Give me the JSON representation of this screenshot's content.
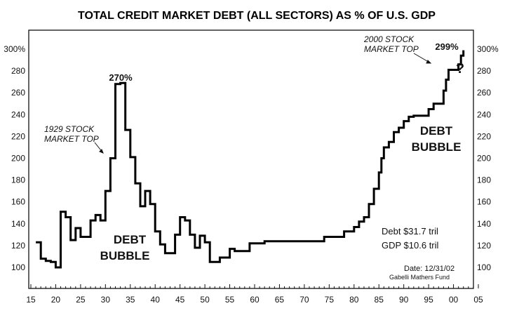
{
  "chart_data": {
    "type": "line",
    "title": "TOTAL CREDIT MARKET DEBT (ALL SECTORS) AS % OF U.S. GDP",
    "xlabel": "",
    "ylabel": "",
    "xlim": [
      1915,
      2005
    ],
    "ylim": [
      90,
      305
    ],
    "x_ticks": [
      "15",
      "20",
      "25",
      "30",
      "35",
      "40",
      "45",
      "50",
      "55",
      "60",
      "65",
      "70",
      "75",
      "80",
      "85",
      "90",
      "95",
      "00",
      "05"
    ],
    "y_ticks_left": [
      "100",
      "120",
      "140",
      "160",
      "180",
      "200",
      "220",
      "240",
      "260",
      "280",
      "300%"
    ],
    "y_ticks_right": [
      "100",
      "120",
      "140",
      "160",
      "180",
      "200",
      "220",
      "240",
      "260",
      "280",
      "300%"
    ],
    "grid": false,
    "series": [
      {
        "points": [
          [
            1916,
            123
          ],
          [
            1917,
            123
          ],
          [
            1917,
            108
          ],
          [
            1918,
            108
          ],
          [
            1918,
            106
          ],
          [
            1919,
            106
          ],
          [
            1919,
            105
          ],
          [
            1920,
            105
          ],
          [
            1920,
            100
          ],
          [
            1921,
            100
          ],
          [
            1921,
            151
          ],
          [
            1922,
            151
          ],
          [
            1922,
            146
          ],
          [
            1923,
            146
          ],
          [
            1923,
            125
          ],
          [
            1924,
            125
          ],
          [
            1924,
            136
          ],
          [
            1925,
            136
          ],
          [
            1925,
            128
          ],
          [
            1926,
            128
          ],
          [
            1926,
            128
          ],
          [
            1927,
            128
          ],
          [
            1927,
            143
          ],
          [
            1928,
            143
          ],
          [
            1928,
            148
          ],
          [
            1929,
            148
          ],
          [
            1929,
            143
          ],
          [
            1930,
            143
          ],
          [
            1930,
            170
          ],
          [
            1931,
            170
          ],
          [
            1931,
            200
          ],
          [
            1932,
            200
          ],
          [
            1932,
            268
          ],
          [
            1933,
            268
          ],
          [
            1933,
            269
          ],
          [
            1934,
            269
          ],
          [
            1934,
            226
          ],
          [
            1935,
            226
          ],
          [
            1935,
            201
          ],
          [
            1936,
            201
          ],
          [
            1936,
            177
          ],
          [
            1937,
            177
          ],
          [
            1937,
            156
          ],
          [
            1938,
            156
          ],
          [
            1938,
            170
          ],
          [
            1939,
            170
          ],
          [
            1939,
            158
          ],
          [
            1940,
            158
          ],
          [
            1940,
            133
          ],
          [
            1941,
            133
          ],
          [
            1941,
            121
          ],
          [
            1942,
            121
          ],
          [
            1942,
            113
          ],
          [
            1944,
            113
          ],
          [
            1944,
            130
          ],
          [
            1945,
            130
          ],
          [
            1945,
            146
          ],
          [
            1946,
            146
          ],
          [
            1946,
            143
          ],
          [
            1947,
            143
          ],
          [
            1947,
            130
          ],
          [
            1948,
            130
          ],
          [
            1948,
            118
          ],
          [
            1949,
            118
          ],
          [
            1949,
            129
          ],
          [
            1950,
            129
          ],
          [
            1950,
            123
          ],
          [
            1951,
            123
          ],
          [
            1951,
            105
          ],
          [
            1953,
            105
          ],
          [
            1953,
            109
          ],
          [
            1955,
            109
          ],
          [
            1955,
            117
          ],
          [
            1956,
            117
          ],
          [
            1956,
            115
          ],
          [
            1959,
            115
          ],
          [
            1959,
            122
          ],
          [
            1962,
            122
          ],
          [
            1962,
            124
          ],
          [
            1974,
            124
          ],
          [
            1974,
            128
          ],
          [
            1978,
            128
          ],
          [
            1978,
            133
          ],
          [
            1980,
            133
          ],
          [
            1980,
            137
          ],
          [
            1981,
            137
          ],
          [
            1981,
            142
          ],
          [
            1982,
            142
          ],
          [
            1982,
            146
          ],
          [
            1983,
            146
          ],
          [
            1983,
            158
          ],
          [
            1984,
            158
          ],
          [
            1984,
            172
          ],
          [
            1985,
            172
          ],
          [
            1985,
            187
          ],
          [
            1985.5,
            187
          ],
          [
            1985.5,
            200
          ],
          [
            1986,
            200
          ],
          [
            1986,
            210
          ],
          [
            1987,
            210
          ],
          [
            1987,
            215
          ],
          [
            1988,
            215
          ],
          [
            1988,
            224
          ],
          [
            1989,
            224
          ],
          [
            1989,
            228
          ],
          [
            1990,
            228
          ],
          [
            1990,
            234
          ],
          [
            1991,
            234
          ],
          [
            1991,
            238
          ],
          [
            1992,
            238
          ],
          [
            1992,
            239
          ],
          [
            1995,
            239
          ],
          [
            1995,
            245
          ],
          [
            1996,
            245
          ],
          [
            1996,
            250
          ],
          [
            1998,
            250
          ],
          [
            1998,
            262
          ],
          [
            1998.5,
            262
          ],
          [
            1998.5,
            272
          ],
          [
            1999,
            272
          ],
          [
            1999,
            281
          ],
          [
            2001,
            281
          ],
          [
            2001,
            286
          ],
          [
            2001.5,
            286
          ],
          [
            2001.5,
            294
          ],
          [
            2002,
            294
          ],
          [
            2002,
            299
          ]
        ]
      }
    ],
    "annotations": [
      {
        "text": "270%",
        "x": 1933,
        "y": 270
      },
      {
        "text": "299%",
        "x": 2002,
        "y": 299
      },
      {
        "text": "?",
        "x": 2003,
        "y": 288
      }
    ]
  },
  "labels": {
    "peak_1929": "270%",
    "peak_2000": "299%",
    "question": "?",
    "stock_1929_line1": "1929 STOCK",
    "stock_1929_line2": "MARKET TOP",
    "stock_2000_line1": "2000 STOCK",
    "stock_2000_line2": "MARKET TOP",
    "bubble1_line1": "DEBT",
    "bubble1_line2": "BUBBLE",
    "bubble2_line1": "DEBT",
    "bubble2_line2": "BUBBLE",
    "debt_total": "Debt $31.7 tril",
    "gdp_total": "GDP $10.6 tril",
    "date": "Date: 12/31/02",
    "source": "Gabelli Mathers Fund"
  }
}
